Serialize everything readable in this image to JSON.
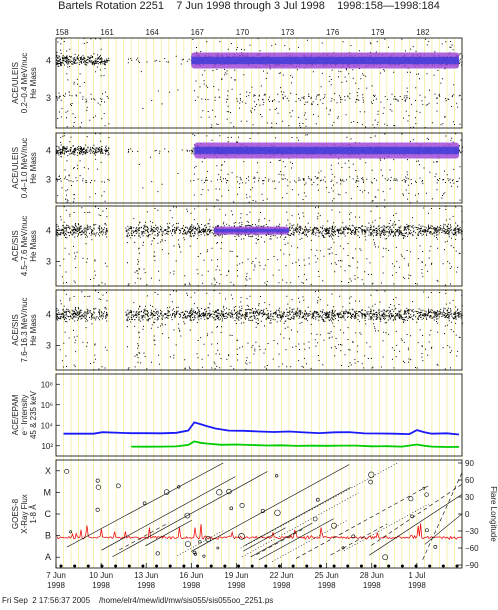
{
  "title": {
    "rotation": "Bartels Rotation 2251",
    "range": "7 Jun 1998 through 3 Jul 1998",
    "doy": "1998:158—1998:184"
  },
  "footer": {
    "timestamp": "Fri Sep  2 17:56:37 2005",
    "path": "/home/elr4/mew/idl/mw/sis055/sis055oo_2251.ps"
  },
  "chart_data": {
    "type": "scatter",
    "x_range_doy": [
      158,
      185
    ],
    "bartels_day_ticks": [
      "158",
      "161",
      "164",
      "167",
      "170",
      "173",
      "176",
      "179",
      "182"
    ],
    "date_ticks": [
      {
        "label": "7 Jun",
        "year": "1998"
      },
      {
        "label": "10 Jun",
        "year": "1998"
      },
      {
        "label": "13 Jun",
        "year": "1998"
      },
      {
        "label": "16 Jun",
        "year": "1998"
      },
      {
        "label": "19 Jun",
        "year": "1998"
      },
      {
        "label": "22 Jun",
        "year": "1998"
      },
      {
        "label": "25 Jun",
        "year": "1998"
      },
      {
        "label": "28 Jun",
        "year": "1998"
      },
      {
        "label": "1 Jul",
        "year": "1998"
      }
    ],
    "panels": [
      {
        "ylabel": [
          "ACE/ULEIS",
          "0.2–0.4 MeV/nuc",
          "He Mass"
        ],
        "yticks": [
          "3",
          "4"
        ],
        "ylim": [
          2.2,
          4.6
        ],
        "data_gaps_doy": [
          [
            161.5,
            162.7
          ]
        ],
        "active_doy": [
          158,
          185
        ],
        "dense_band_doy": [
          167.0,
          184.8
        ],
        "center_mass": 4.0,
        "series": [
          {
            "name": "He-4",
            "center": 4.0,
            "spread": 0.09
          },
          {
            "name": "He-3",
            "center": 3.0,
            "spread": 0.1
          }
        ]
      },
      {
        "ylabel": [
          "ACE/ULEIS",
          "0.4–1.0 MeV/nuc",
          "He Mass"
        ],
        "yticks": [
          "3",
          "4"
        ],
        "ylim": [
          2.2,
          4.6
        ],
        "data_gaps_doy": [
          [
            161.5,
            162.7
          ]
        ],
        "active_doy": [
          158,
          185
        ],
        "dense_band_doy": [
          167.2,
          184.8
        ],
        "center_mass": 4.0,
        "series": [
          {
            "name": "He-4",
            "center": 4.0,
            "spread": 0.09
          },
          {
            "name": "He-3",
            "center": 3.0,
            "spread": 0.08
          }
        ]
      },
      {
        "ylabel": [
          "ACE/SIS",
          "4.5–7.6 MeV/nuc",
          "He Mass"
        ],
        "yticks": [
          "3",
          "4"
        ],
        "ylim": [
          2.2,
          4.8
        ],
        "data_gaps_doy": [
          [
            161.4,
            162.6
          ]
        ],
        "active_doy": [
          158,
          185
        ],
        "dense_band_doy": [
          168.5,
          173.5
        ],
        "center_mass": 4.0,
        "series": [
          {
            "name": "He-4",
            "center": 4.0,
            "spread": 0.12
          }
        ]
      },
      {
        "ylabel": [
          "ACE/SIS",
          "7.6–16.3 MeV/nuc",
          "He Mass"
        ],
        "yticks": [
          "3",
          "4"
        ],
        "ylim": [
          2.2,
          4.8
        ],
        "data_gaps_doy": [
          [
            161.4,
            162.6
          ]
        ],
        "active_doy": [
          158,
          185
        ],
        "dense_band_doy": [],
        "center_mass": 4.0,
        "series": [
          {
            "name": "He-4",
            "center": 4.0,
            "spread": 0.12
          }
        ]
      },
      {
        "ylabel": [
          "ACE/EPAM",
          "e⁻ Intensity",
          "45 & 235 keV"
        ],
        "yticks": [
          "10²",
          "10⁴",
          "10⁶",
          "10⁸"
        ],
        "log_ylim": [
          1,
          9
        ],
        "series": [
          {
            "name": "45 keV",
            "color": "#1a1aff",
            "x": [
              158.5,
              159.5,
              160.5,
              161.1,
              163.0,
              164.0,
              165.0,
              166.0,
              166.8,
              167.2,
              167.6,
              168.0,
              168.6,
              169.5,
              170.5,
              171.5,
              172.5,
              173.5,
              174.5,
              175.5,
              176.5,
              177.5,
              178.5,
              179.5,
              180.5,
              181.5,
              182.0,
              182.5,
              183.0,
              184.0,
              184.8
            ],
            "y": [
              3.2,
              3.2,
              3.2,
              3.3,
              3.25,
              3.25,
              3.2,
              3.25,
              3.5,
              4.3,
              4.1,
              3.9,
              3.7,
              3.5,
              3.45,
              3.4,
              3.35,
              3.4,
              3.3,
              3.25,
              3.3,
              3.35,
              3.2,
              3.2,
              3.15,
              3.15,
              3.5,
              3.3,
              3.2,
              3.2,
              3.1
            ]
          },
          {
            "name": "235 keV",
            "color": "#00cc00",
            "x": [
              163.0,
              164.0,
              165.0,
              166.0,
              166.8,
              167.2,
              167.6,
              168.0,
              169.0,
              170.0,
              171.0,
              172.0,
              173.0,
              174.0,
              175.0,
              176.0,
              177.0,
              178.0,
              179.0,
              180.0,
              181.0,
              182.0,
              182.5,
              183.0,
              184.0,
              184.8
            ],
            "y": [
              1.9,
              1.9,
              1.9,
              1.95,
              2.1,
              2.4,
              2.3,
              2.2,
              2.1,
              2.1,
              2.05,
              2.05,
              2.05,
              2.0,
              2.0,
              2.0,
              2.0,
              2.0,
              1.95,
              1.95,
              1.9,
              2.1,
              2.0,
              1.9,
              1.9,
              1.9
            ]
          }
        ]
      },
      {
        "ylabel": [
          "GOES-8",
          "X-Ray Flux",
          "1-8 Å"
        ],
        "yticks": [
          "A",
          "B",
          "C",
          "M",
          "X"
        ],
        "right_label": "Flare Longitude",
        "right_ticks": [
          "90",
          "60",
          "30",
          "0",
          "−30",
          "−60",
          "−90"
        ],
        "xray_baseline_class": "B"
      }
    ]
  }
}
